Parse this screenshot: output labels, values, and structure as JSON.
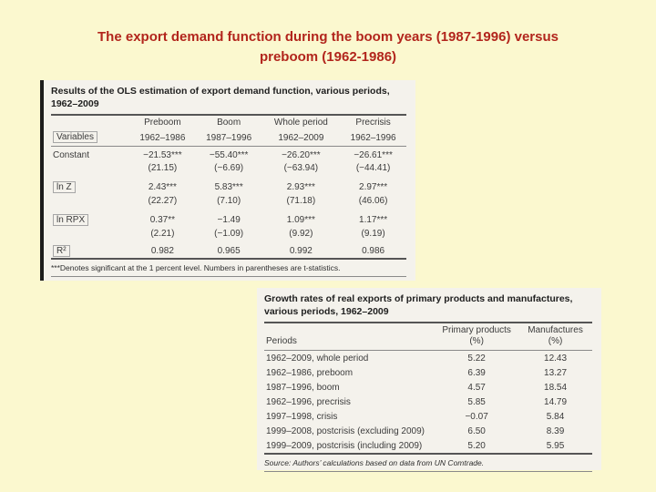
{
  "colors": {
    "background": "#FBF8CF",
    "title_text": "#B2251C",
    "panel_background": "#F4F2EC"
  },
  "slide": {
    "title_line1": "The export demand function during the boom years (1987-1996) versus",
    "title_line2": "preboom (1962-1986)"
  },
  "table1": {
    "title": "Results of the OLS estimation of export demand function, various periods, 1962–2009",
    "row_header": "Variables",
    "col_groups": [
      "Preboom",
      "Boom",
      "Whole period",
      "Precrisis"
    ],
    "col_periods": [
      "1962–1986",
      "1987–1996",
      "1962–2009",
      "1962–1996"
    ],
    "rows": [
      {
        "label": "Constant",
        "values": [
          "−21.53***",
          "−55.40***",
          "−26.20***",
          "−26.61***"
        ]
      },
      {
        "label": "",
        "values": [
          "(21.15)",
          "(−6.69)",
          "(−63.94)",
          "(−44.41)"
        ]
      },
      {
        "label": "ln Z",
        "values": [
          "2.43***",
          "5.83***",
          "2.93***",
          "2.97***"
        ]
      },
      {
        "label": "",
        "values": [
          "(22.27)",
          "(7.10)",
          "(71.18)",
          "(46.06)"
        ]
      },
      {
        "label": "ln RPX",
        "values": [
          "0.37**",
          "−1.49",
          "1.09***",
          "1.17***"
        ]
      },
      {
        "label": "",
        "values": [
          "(2.21)",
          "(−1.09)",
          "(9.92)",
          "(9.19)"
        ]
      },
      {
        "label": "R²",
        "values": [
          "0.982",
          "0.965",
          "0.992",
          "0.986"
        ]
      }
    ],
    "footnote": "***Denotes significant at the 1 percent level. Numbers in parentheses are t-statistics."
  },
  "table2": {
    "title": "Growth rates of real exports of primary products and manufactures, various periods, 1962–2009",
    "col_headers": {
      "periods": "Periods",
      "primary": "Primary products (%)",
      "manufactures": "Manufactures (%)"
    },
    "rows": [
      {
        "period": "1962–2009, whole period",
        "primary": "5.22",
        "manufactures": "12.43"
      },
      {
        "period": "1962–1986, preboom",
        "primary": "6.39",
        "manufactures": "13.27"
      },
      {
        "period": "1987–1996, boom",
        "primary": "4.57",
        "manufactures": "18.54"
      },
      {
        "period": "1962–1996, precrisis",
        "primary": "5.85",
        "manufactures": "14.79"
      },
      {
        "period": "1997–1998, crisis",
        "primary": "−0.07",
        "manufactures": "5.84"
      },
      {
        "period": "1999–2008, postcrisis (excluding 2009)",
        "primary": "6.50",
        "manufactures": "8.39"
      },
      {
        "period": "1999–2009, postcrisis (including 2009)",
        "primary": "5.20",
        "manufactures": "5.95"
      }
    ],
    "source": "Source: Authors’ calculations based on data from UN Comtrade."
  }
}
